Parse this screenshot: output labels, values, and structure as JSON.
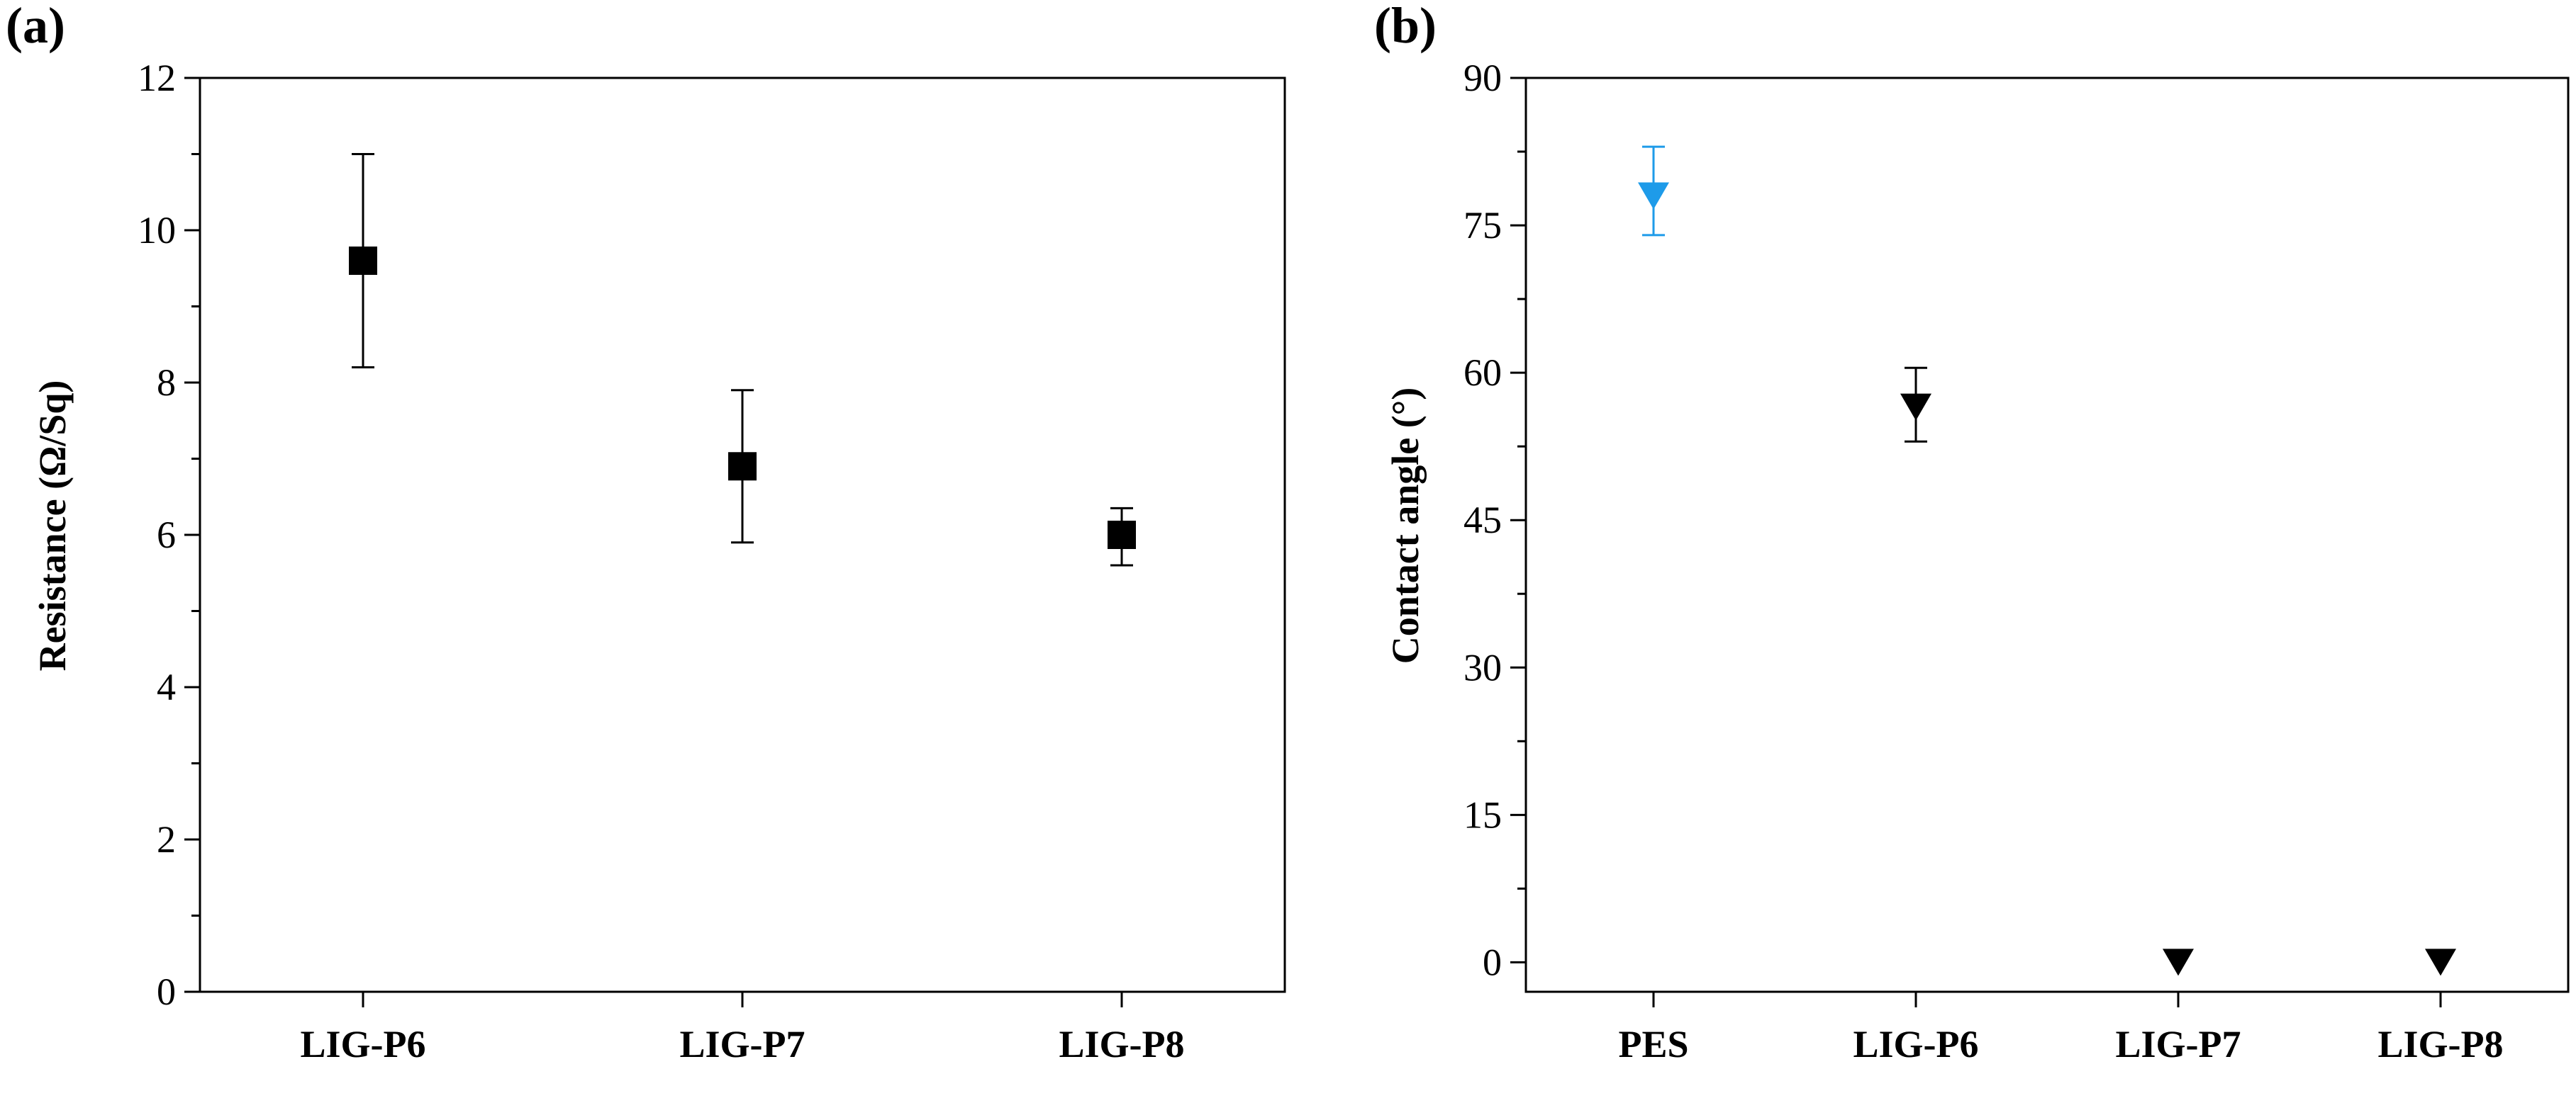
{
  "chart_data": [
    {
      "panel_label": "(a)",
      "type": "scatter",
      "marker": "square",
      "title": "",
      "xlabel": "",
      "ylabel": "Resistance (Ω/Sq)",
      "categories": [
        "LIG-P6",
        "LIG-P7",
        "LIG-P8"
      ],
      "ylim": [
        0,
        12
      ],
      "yticks": [
        0,
        2,
        4,
        6,
        8,
        10,
        12
      ],
      "ytick_labels": [
        "0",
        "2",
        "4",
        "6",
        "8",
        "10",
        "12"
      ],
      "grid": false,
      "series": [
        {
          "name": "Resistance",
          "values": [
            9.6,
            6.9,
            6.0
          ],
          "error_low": [
            8.2,
            5.9,
            5.6
          ],
          "error_high": [
            11.0,
            7.9,
            6.35
          ],
          "colors": [
            "#000000",
            "#000000",
            "#000000"
          ]
        }
      ]
    },
    {
      "panel_label": "(b)",
      "type": "scatter",
      "marker": "triangle-down",
      "title": "",
      "xlabel": "",
      "ylabel": "Contact angle (°)",
      "categories": [
        "PES",
        "LIG-P6",
        "LIG-P7",
        "LIG-P8"
      ],
      "ylim": [
        -3,
        90
      ],
      "yticks": [
        0,
        15,
        30,
        45,
        60,
        75,
        90
      ],
      "ytick_labels": [
        "0",
        "15",
        "30",
        "45",
        "60",
        "75",
        "90"
      ],
      "grid": false,
      "series": [
        {
          "name": "Contact angle",
          "values": [
            78,
            56.5,
            0,
            0
          ],
          "error_low": [
            74,
            53,
            null,
            null
          ],
          "error_high": [
            83,
            60.5,
            null,
            null
          ],
          "colors": [
            "#1e9be9",
            "#000000",
            "#000000",
            "#000000"
          ]
        }
      ]
    }
  ]
}
